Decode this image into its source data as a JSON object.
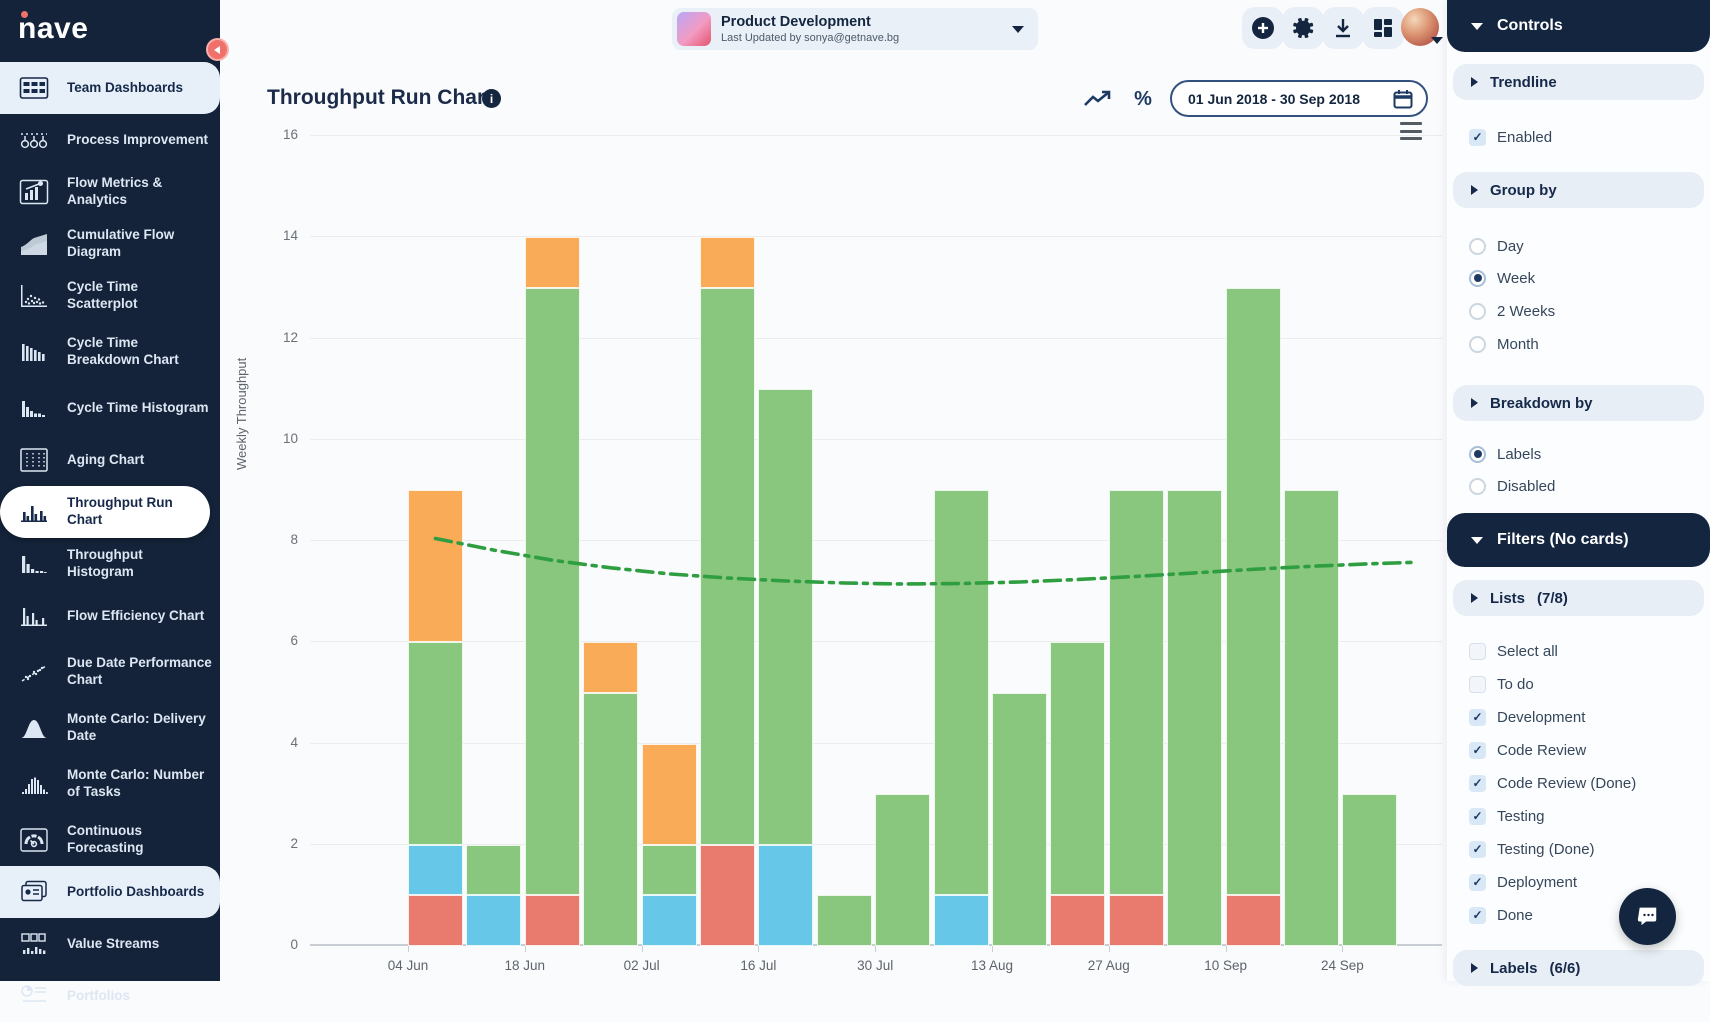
{
  "sidebar": {
    "logo": "nave",
    "items": [
      {
        "label": "Team Dashboards",
        "state": "section-active"
      },
      {
        "label": "Process Improvement"
      },
      {
        "label": "Flow Metrics & Analytics"
      },
      {
        "label": "Cumulative Flow Diagram"
      },
      {
        "label": "Cycle Time Scatterplot"
      },
      {
        "label": "Cycle Time Breakdown Chart"
      },
      {
        "label": "Cycle Time Histogram"
      },
      {
        "label": "Aging Chart"
      },
      {
        "label": "Throughput Run Chart",
        "state": "selected"
      },
      {
        "label": "Throughput Histogram"
      },
      {
        "label": "Flow Efficiency Chart"
      },
      {
        "label": "Due Date Performance Chart"
      },
      {
        "label": "Monte Carlo: Delivery Date"
      },
      {
        "label": "Monte Carlo: Number of Tasks"
      },
      {
        "label": "Continuous Forecasting"
      },
      {
        "label": "Portfolio Dashboards",
        "state": "section-active"
      },
      {
        "label": "Value Streams"
      },
      {
        "label": "Portfolios"
      }
    ]
  },
  "topbar": {
    "project": {
      "title": "Product Development",
      "subtitle": "Last Updated by sonya@getnave.bg"
    },
    "icons": [
      "add-icon",
      "gear-icon",
      "download-icon",
      "dashboard-grid-icon",
      "avatar"
    ]
  },
  "header": {
    "title": "Throughput Run Chart",
    "date_range": "01 Jun 2018 - 30 Sep 2018",
    "percent_label": "%"
  },
  "controls": {
    "header_label": "Controls",
    "trendline": {
      "title": "Trendline",
      "enabled_label": "Enabled",
      "enabled": true
    },
    "group_by": {
      "title": "Group by",
      "options": [
        "Day",
        "Week",
        "2 Weeks",
        "Month"
      ],
      "selected": "Week"
    },
    "breakdown_by": {
      "title": "Breakdown by",
      "options": [
        "Labels",
        "Disabled"
      ],
      "selected": "Labels"
    },
    "filters_label": "Filters (No cards)",
    "lists": {
      "title": "Lists",
      "count": "(7/8)",
      "items": [
        {
          "label": "Select all",
          "checked": false
        },
        {
          "label": "To do",
          "checked": false
        },
        {
          "label": "Development",
          "checked": true
        },
        {
          "label": "Code Review",
          "checked": true
        },
        {
          "label": "Code Review (Done)",
          "checked": true
        },
        {
          "label": "Testing",
          "checked": true
        },
        {
          "label": "Testing (Done)",
          "checked": true
        },
        {
          "label": "Deployment",
          "checked": true
        },
        {
          "label": "Done",
          "checked": true
        }
      ]
    },
    "labels_section": {
      "title": "Labels",
      "count": "(6/6)"
    }
  },
  "chart_data": {
    "type": "bar",
    "stacked": true,
    "title": "Throughput Run Chart",
    "xlabel": "",
    "ylabel": "Weekly Throughput",
    "ylim": [
      0,
      16
    ],
    "ytick_step": 2,
    "grid": "horizontal",
    "legend": "none",
    "x_tick_labels": [
      "04 Jun",
      "18 Jun",
      "02 Jul",
      "16 Jul",
      "30 Jul",
      "13 Aug",
      "27 Aug",
      "10 Sep",
      "24 Sep"
    ],
    "series_order": [
      "red",
      "blue",
      "green",
      "orange"
    ],
    "colors": {
      "red": "#e97b6e",
      "blue": "#67c7e8",
      "green": "#8ac77e",
      "orange": "#f9ab57",
      "trendline": "#2f9e41"
    },
    "bars": [
      {
        "week": 1,
        "label": "04 Jun",
        "red": 1,
        "blue": 1,
        "green": 4,
        "orange": 3,
        "total": 9
      },
      {
        "week": 2,
        "blue": 1,
        "green": 1,
        "total": 2
      },
      {
        "week": 3,
        "label": "18 Jun",
        "red": 1,
        "green": 12,
        "orange": 1,
        "total": 14
      },
      {
        "week": 4,
        "green": 5,
        "orange": 1,
        "total": 6
      },
      {
        "week": 5,
        "label": "02 Jul",
        "blue": 1,
        "green": 1,
        "orange": 2,
        "total": 4
      },
      {
        "week": 6,
        "red": 2,
        "green": 11,
        "orange": 1,
        "total": 14
      },
      {
        "week": 7,
        "label": "16 Jul",
        "blue": 2,
        "green": 9,
        "total": 11
      },
      {
        "week": 8,
        "green": 1,
        "total": 1
      },
      {
        "week": 9,
        "label": "30 Jul",
        "green": 3,
        "total": 3
      },
      {
        "week": 10,
        "blue": 1,
        "green": 8,
        "total": 9
      },
      {
        "week": 11,
        "label": "13 Aug",
        "green": 5,
        "total": 5
      },
      {
        "week": 12,
        "red": 1,
        "green": 5,
        "total": 6
      },
      {
        "week": 13,
        "label": "27 Aug",
        "red": 1,
        "green": 8,
        "total": 9
      },
      {
        "week": 14,
        "green": 9,
        "total": 9
      },
      {
        "week": 15,
        "label": "10 Sep",
        "red": 1,
        "green": 12,
        "total": 13
      },
      {
        "week": 16,
        "green": 9,
        "total": 9
      },
      {
        "week": 17,
        "label": "24 Sep",
        "green": 3,
        "total": 3
      }
    ],
    "trendline": {
      "style": "dash-dot",
      "values": [
        8.05,
        7.82,
        7.62,
        7.47,
        7.35,
        7.27,
        7.21,
        7.17,
        7.15,
        7.16,
        7.19,
        7.24,
        7.3,
        7.37,
        7.44,
        7.5,
        7.55
      ]
    }
  }
}
